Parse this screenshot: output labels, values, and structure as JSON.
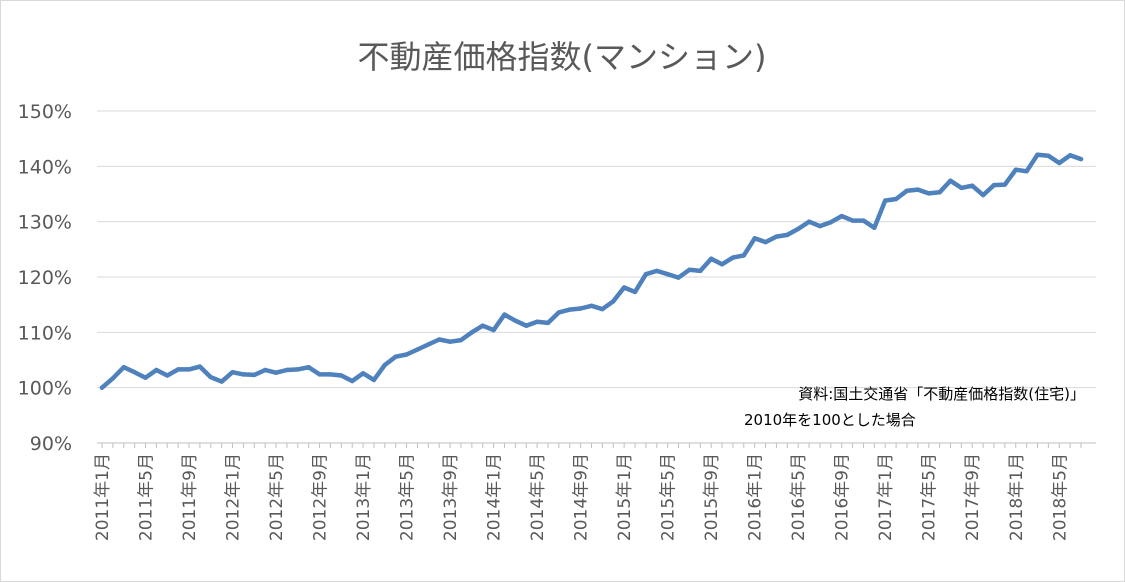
{
  "chart_data": {
    "type": "line",
    "title": "不動産価格指数(マンション)",
    "xlabel": "",
    "ylabel": "",
    "ylim": [
      90,
      150
    ],
    "ytick_values": [
      90,
      100,
      110,
      120,
      130,
      140,
      150
    ],
    "ytick_labels": [
      "90%",
      "100%",
      "110%",
      "120%",
      "130%",
      "140%",
      "150%"
    ],
    "grid": true,
    "legend": "none",
    "line_color": "#4f81bd",
    "xtick_labels": [
      "2011年1月",
      "2011年5月",
      "2011年9月",
      "2012年1月",
      "2012年5月",
      "2012年9月",
      "2013年1月",
      "2013年5月",
      "2013年9月",
      "2014年1月",
      "2014年5月",
      "2014年9月",
      "2015年1月",
      "2015年5月",
      "2015年9月",
      "2016年1月",
      "2016年5月",
      "2016年9月",
      "2017年1月",
      "2017年5月",
      "2017年9月",
      "2018年1月",
      "2018年5月"
    ],
    "x": [
      "2011-01",
      "2011-02",
      "2011-03",
      "2011-04",
      "2011-05",
      "2011-06",
      "2011-07",
      "2011-08",
      "2011-09",
      "2011-10",
      "2011-11",
      "2011-12",
      "2012-01",
      "2012-02",
      "2012-03",
      "2012-04",
      "2012-05",
      "2012-06",
      "2012-07",
      "2012-08",
      "2012-09",
      "2012-10",
      "2012-11",
      "2012-12",
      "2013-01",
      "2013-02",
      "2013-03",
      "2013-04",
      "2013-05",
      "2013-06",
      "2013-07",
      "2013-08",
      "2013-09",
      "2013-10",
      "2013-11",
      "2013-12",
      "2014-01",
      "2014-02",
      "2014-03",
      "2014-04",
      "2014-05",
      "2014-06",
      "2014-07",
      "2014-08",
      "2014-09",
      "2014-10",
      "2014-11",
      "2014-12",
      "2015-01",
      "2015-02",
      "2015-03",
      "2015-04",
      "2015-05",
      "2015-06",
      "2015-07",
      "2015-08",
      "2015-09",
      "2015-10",
      "2015-11",
      "2015-12",
      "2016-01",
      "2016-02",
      "2016-03",
      "2016-04",
      "2016-05",
      "2016-06",
      "2016-07",
      "2016-08",
      "2016-09",
      "2016-10",
      "2016-11",
      "2016-12",
      "2017-01",
      "2017-02",
      "2017-03",
      "2017-04",
      "2017-05",
      "2017-06",
      "2017-07",
      "2017-08",
      "2017-09",
      "2017-10",
      "2017-11",
      "2017-12",
      "2018-01",
      "2018-02",
      "2018-03",
      "2018-04",
      "2018-05",
      "2018-06",
      "2018-07"
    ],
    "series": [
      {
        "values": [
          100.0,
          101.7,
          103.7,
          102.8,
          101.8,
          103.2,
          102.2,
          103.3,
          103.3,
          103.8,
          101.9,
          101.1,
          102.8,
          102.4,
          102.3,
          103.2,
          102.7,
          103.2,
          103.3,
          103.7,
          102.4,
          102.4,
          102.2,
          101.2,
          102.6,
          101.4,
          104.1,
          105.6,
          106.0,
          106.9,
          107.8,
          108.7,
          108.3,
          108.6,
          110.0,
          111.2,
          110.4,
          113.2,
          112.1,
          111.2,
          111.9,
          111.7,
          113.6,
          114.1,
          114.3,
          114.8,
          114.2,
          115.6,
          118.1,
          117.3,
          120.5,
          121.1,
          120.5,
          119.9,
          121.3,
          121.1,
          123.3,
          122.3,
          123.5,
          123.9,
          127.0,
          126.3,
          127.3,
          127.6,
          128.7,
          130.0,
          129.2,
          129.9,
          131.0,
          130.2,
          130.2,
          128.9,
          133.8,
          134.1,
          135.6,
          135.8,
          135.1,
          135.3,
          137.4,
          136.1,
          136.5,
          134.8,
          136.6,
          136.7,
          139.4,
          139.1,
          142.1,
          141.9,
          140.6,
          142.0,
          141.3
        ]
      }
    ],
    "annotation_lines": [
      "資料:国土交通省「不動産価格指数(住宅)」",
      "2010年を100とした場合"
    ]
  }
}
